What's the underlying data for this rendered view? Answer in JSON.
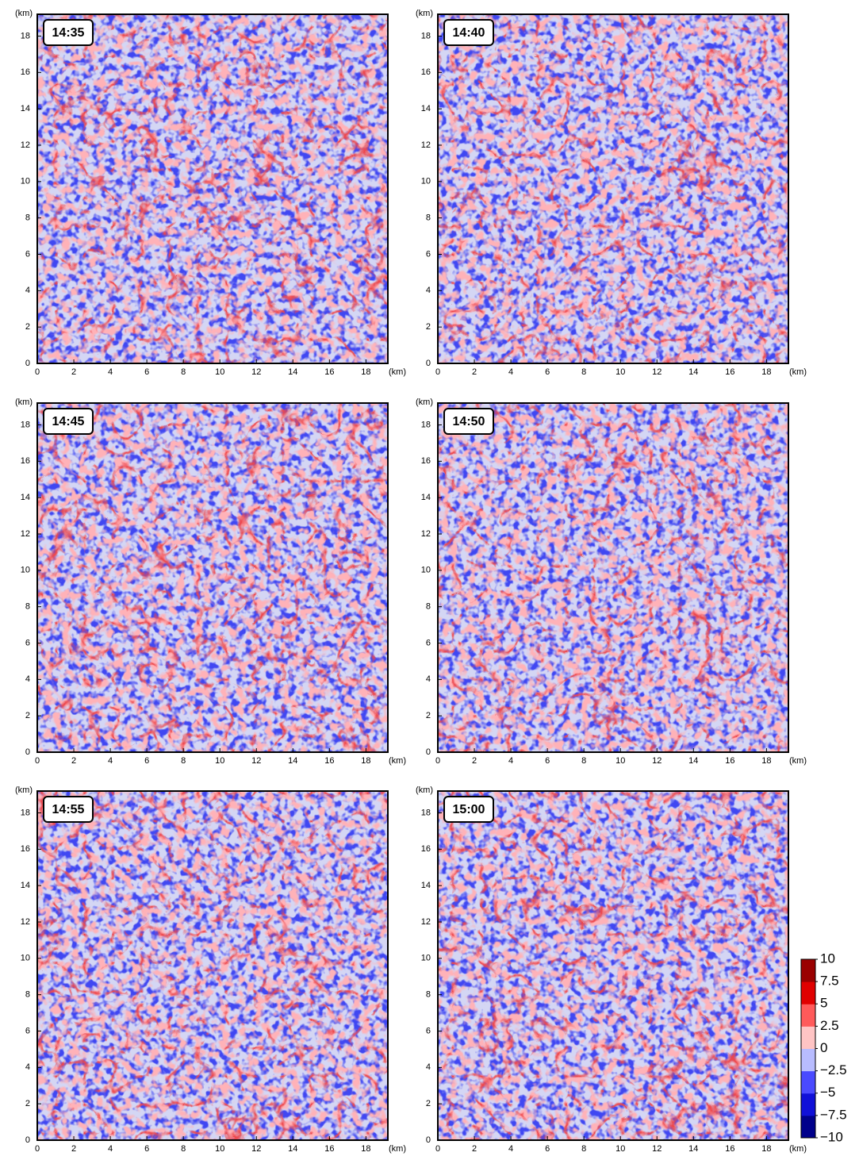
{
  "chart_data": [
    {
      "type": "heatmap",
      "title": "14:35",
      "xlabel": "(km)",
      "ylabel": "(km)",
      "xlim": [
        0,
        19.2
      ],
      "ylim": [
        0,
        19.2
      ],
      "xticks": [
        0,
        2,
        4,
        6,
        8,
        10,
        12,
        14,
        16,
        18
      ],
      "yticks": [
        0,
        2,
        4,
        6,
        8,
        10,
        12,
        14,
        16,
        18
      ]
    },
    {
      "type": "heatmap",
      "title": "14:40",
      "xlabel": "(km)",
      "ylabel": "(km)",
      "xlim": [
        0,
        19.2
      ],
      "ylim": [
        0,
        19.2
      ],
      "xticks": [
        0,
        2,
        4,
        6,
        8,
        10,
        12,
        14,
        16,
        18
      ],
      "yticks": [
        0,
        2,
        4,
        6,
        8,
        10,
        12,
        14,
        16,
        18
      ]
    },
    {
      "type": "heatmap",
      "title": "14:45",
      "xlabel": "(km)",
      "ylabel": "(km)",
      "xlim": [
        0,
        19.2
      ],
      "ylim": [
        0,
        19.2
      ],
      "xticks": [
        0,
        2,
        4,
        6,
        8,
        10,
        12,
        14,
        16,
        18
      ],
      "yticks": [
        0,
        2,
        4,
        6,
        8,
        10,
        12,
        14,
        16,
        18
      ]
    },
    {
      "type": "heatmap",
      "title": "14:50",
      "xlabel": "(km)",
      "ylabel": "(km)",
      "xlim": [
        0,
        19.2
      ],
      "ylim": [
        0,
        19.2
      ],
      "xticks": [
        0,
        2,
        4,
        6,
        8,
        10,
        12,
        14,
        16,
        18
      ],
      "yticks": [
        0,
        2,
        4,
        6,
        8,
        10,
        12,
        14,
        16,
        18
      ]
    },
    {
      "type": "heatmap",
      "title": "14:55",
      "xlabel": "(km)",
      "ylabel": "(km)",
      "xlim": [
        0,
        19.2
      ],
      "ylim": [
        0,
        19.2
      ],
      "xticks": [
        0,
        2,
        4,
        6,
        8,
        10,
        12,
        14,
        16,
        18
      ],
      "yticks": [
        0,
        2,
        4,
        6,
        8,
        10,
        12,
        14,
        16,
        18
      ]
    },
    {
      "type": "heatmap",
      "title": "15:00",
      "xlabel": "(km)",
      "ylabel": "(km)",
      "xlim": [
        0,
        19.2
      ],
      "ylim": [
        0,
        19.2
      ],
      "xticks": [
        0,
        2,
        4,
        6,
        8,
        10,
        12,
        14,
        16,
        18
      ],
      "yticks": [
        0,
        2,
        4,
        6,
        8,
        10,
        12,
        14,
        16,
        18
      ]
    }
  ],
  "colorbar": {
    "lim": [
      -10,
      10
    ],
    "ticks": [
      10,
      7.5,
      5,
      2.5,
      0,
      {
        "value": -2.5,
        "label": "−2.5"
      },
      {
        "value": -5,
        "label": "−5"
      },
      {
        "value": -7.5,
        "label": "−7.5"
      },
      {
        "value": -10,
        "label": "−10"
      }
    ],
    "colors": [
      "#00008b",
      "#1010d8",
      "#4a4aff",
      "#b8bcff",
      "#ffc4c4",
      "#ff5a5a",
      "#e00000",
      "#9a0000"
    ]
  }
}
